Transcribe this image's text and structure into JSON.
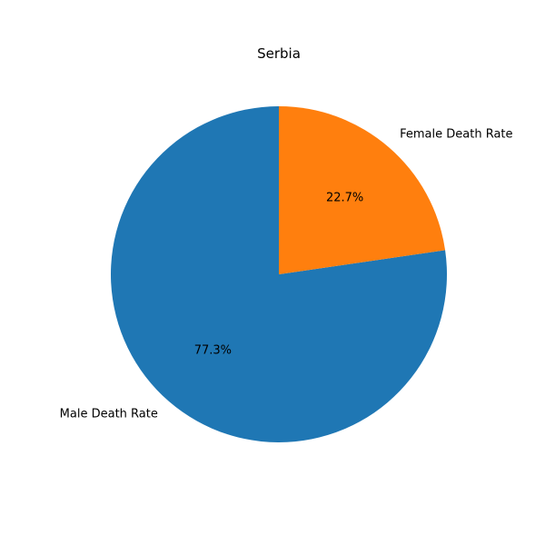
{
  "chart_data": {
    "type": "pie",
    "title": "Serbia",
    "labels": [
      "Male Death Rate",
      "Female Death Rate"
    ],
    "values": [
      77.3,
      22.7
    ],
    "percent_labels": [
      "77.3%",
      "22.7%"
    ],
    "colors": [
      "#1f77b4",
      "#ff7f0e"
    ],
    "start_angle_deg": 90,
    "direction": "counterclockwise",
    "legend": "none"
  }
}
